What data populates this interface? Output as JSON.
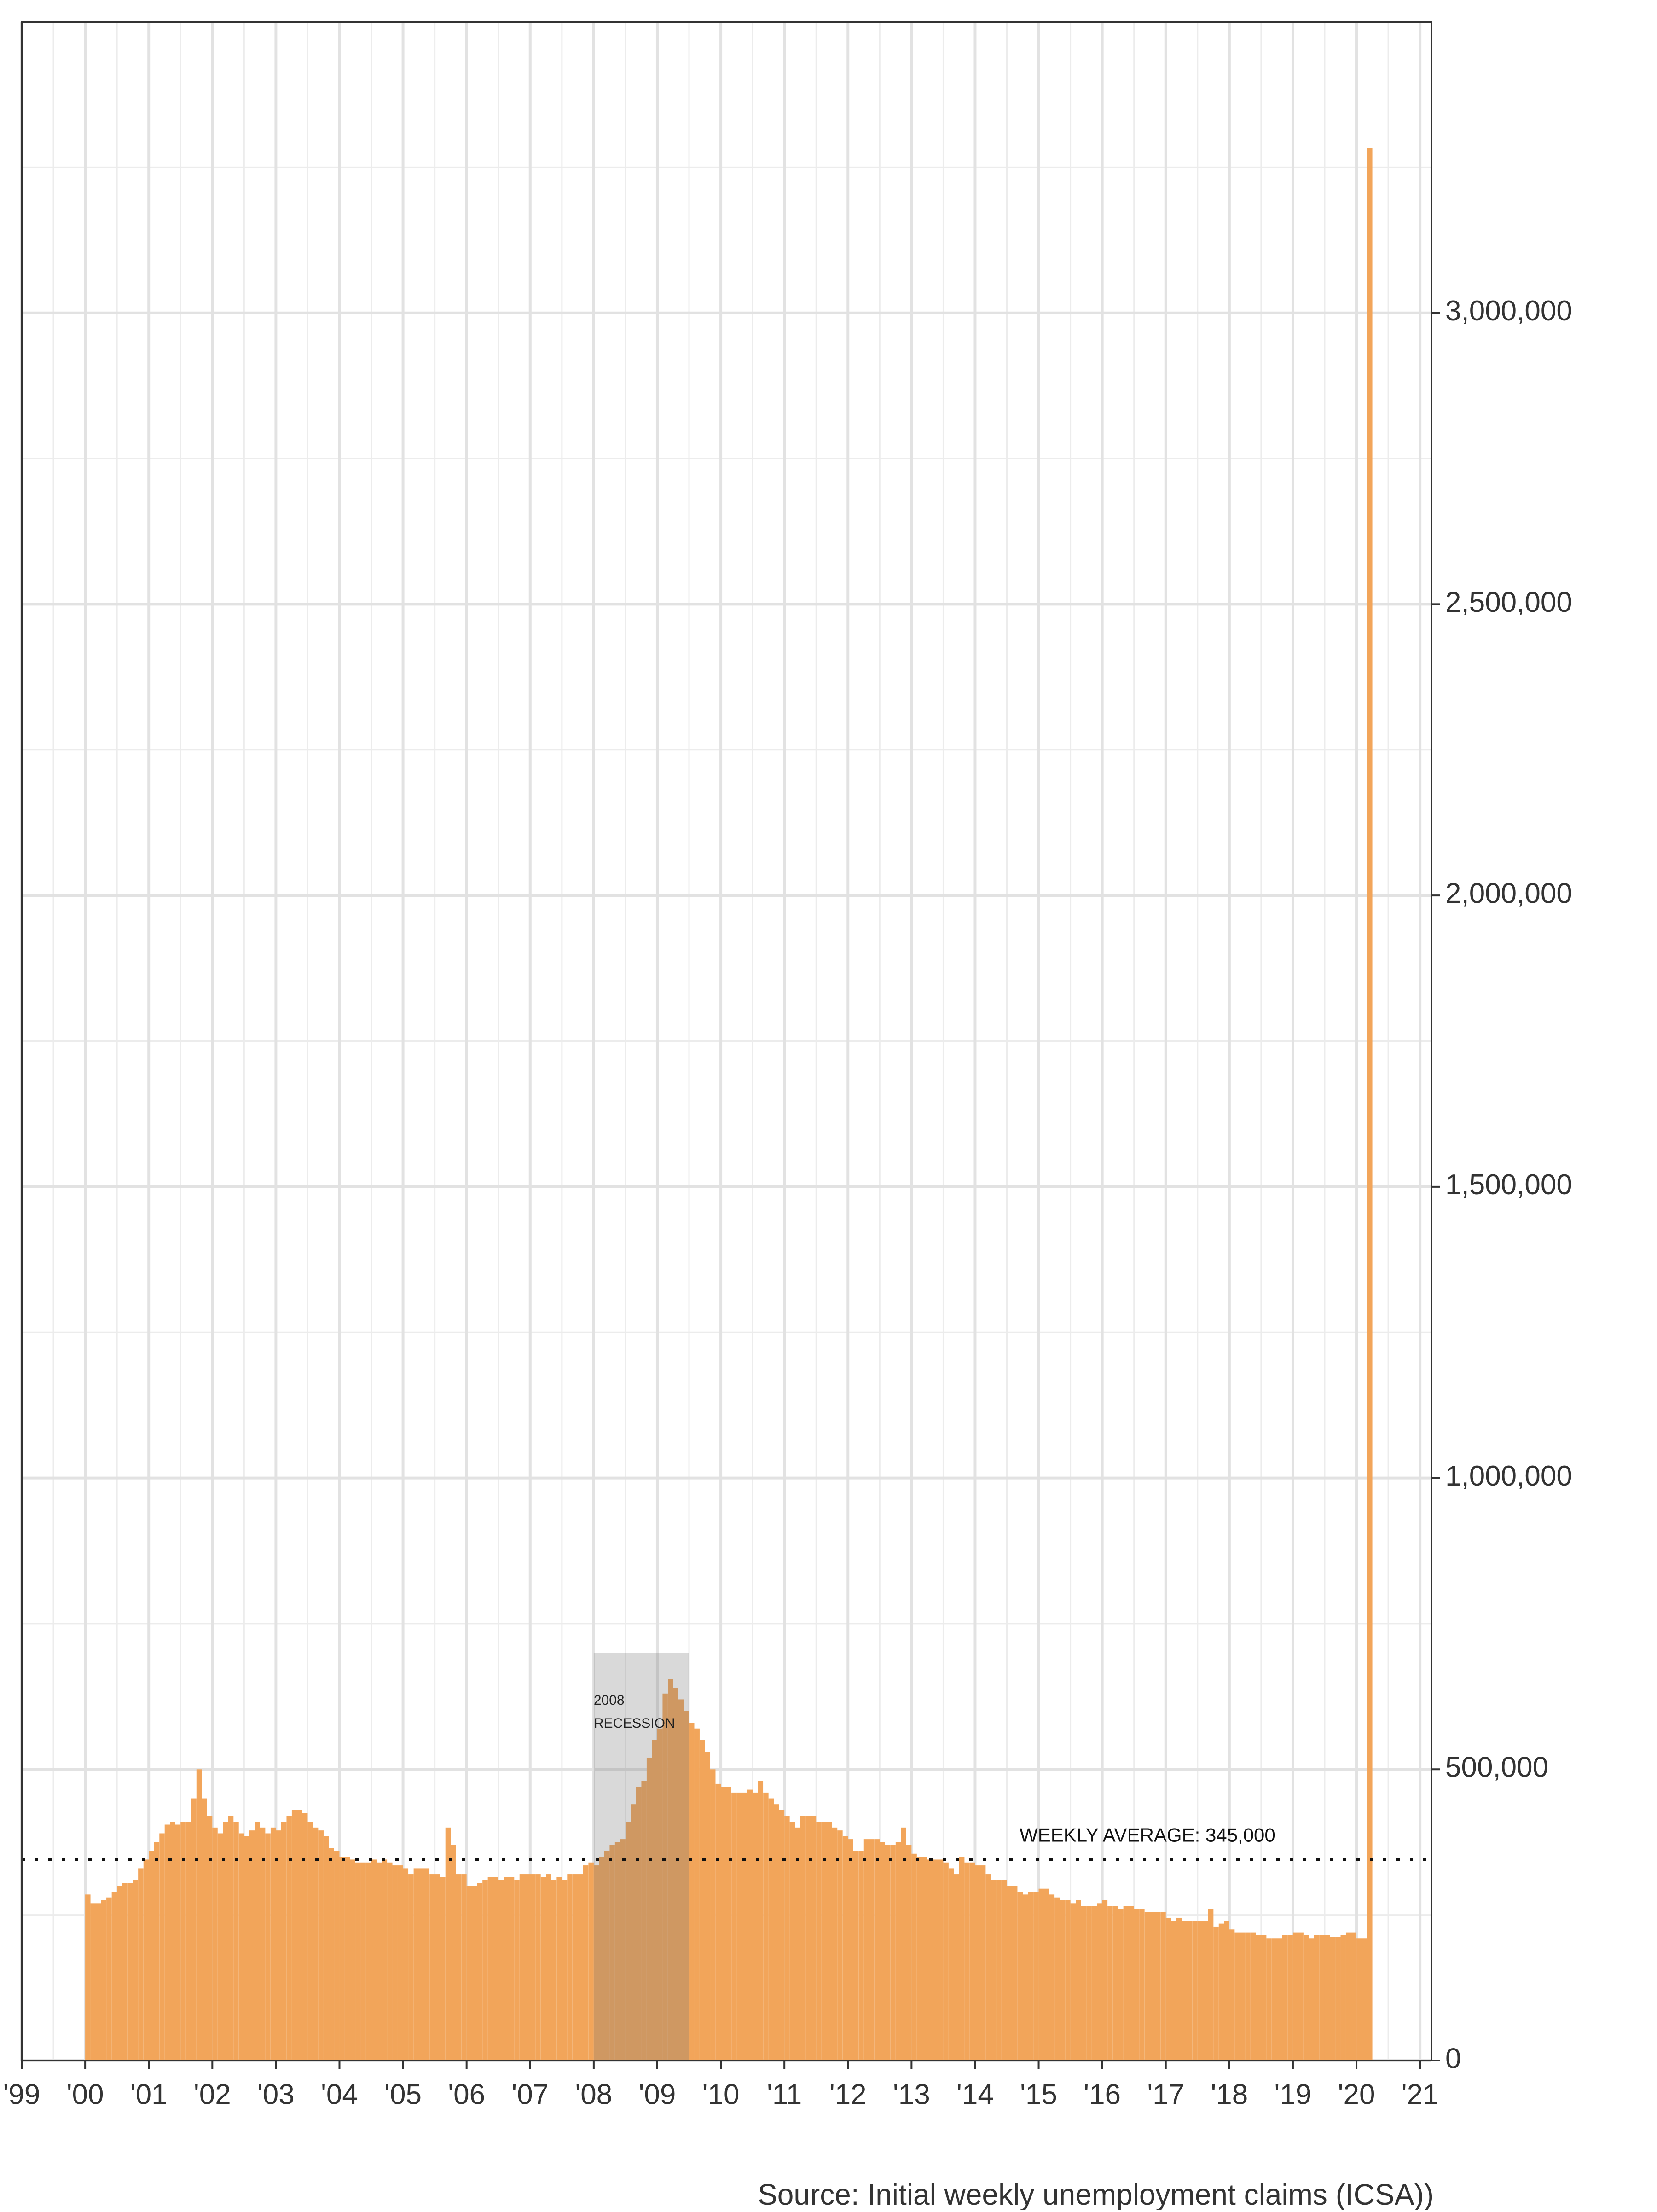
{
  "chart_data": {
    "type": "bar",
    "source": "Source: Initial weekly unemployment claims (ICSA))",
    "color": "#f2a55a",
    "grid": true,
    "xlim": [
      1999,
      2021.18
    ],
    "ylim": [
      0,
      3500000
    ],
    "xticks": [
      {
        "value": 1999,
        "label": "'99"
      },
      {
        "value": 2000,
        "label": "'00"
      },
      {
        "value": 2001,
        "label": "'01"
      },
      {
        "value": 2002,
        "label": "'02"
      },
      {
        "value": 2003,
        "label": "'03"
      },
      {
        "value": 2004,
        "label": "'04"
      },
      {
        "value": 2005,
        "label": "'05"
      },
      {
        "value": 2006,
        "label": "'06"
      },
      {
        "value": 2007,
        "label": "'07"
      },
      {
        "value": 2008,
        "label": "'08"
      },
      {
        "value": 2009,
        "label": "'09"
      },
      {
        "value": 2010,
        "label": "'10"
      },
      {
        "value": 2011,
        "label": "'11"
      },
      {
        "value": 2012,
        "label": "'12"
      },
      {
        "value": 2013,
        "label": "'13"
      },
      {
        "value": 2014,
        "label": "'14"
      },
      {
        "value": 2015,
        "label": "'15"
      },
      {
        "value": 2016,
        "label": "'16"
      },
      {
        "value": 2017,
        "label": "'17"
      },
      {
        "value": 2018,
        "label": "'18"
      },
      {
        "value": 2019,
        "label": "'19"
      },
      {
        "value": 2020,
        "label": "'20"
      },
      {
        "value": 2021,
        "label": "'21"
      }
    ],
    "minor_xticks": [
      1999.5,
      2000.5,
      2001.5,
      2002.5,
      2003.5,
      2004.5,
      2005.5,
      2006.5,
      2007.5,
      2008.5,
      2009.5,
      2010.5,
      2011.5,
      2012.5,
      2013.5,
      2014.5,
      2015.5,
      2016.5,
      2017.5,
      2018.5,
      2019.5,
      2020.5
    ],
    "yticks": [
      0,
      {
        "value": 500000,
        "label": "500,000"
      },
      {
        "value": 1000000,
        "label": "1,000,000"
      },
      {
        "value": 1500000,
        "label": "1,500,000"
      },
      {
        "value": 2000000,
        "label": "2,000,000"
      },
      {
        "value": 2500000,
        "label": "2,500,000"
      },
      {
        "value": 3000000,
        "label": "3,000,000"
      }
    ],
    "minor_yticks": [
      250000,
      750000,
      1250000,
      1750000,
      2250000,
      2750000,
      3250000
    ],
    "recession": {
      "label_lines": [
        "2008",
        "RECESSION"
      ],
      "x": [
        2008,
        2009.5
      ],
      "top": 700000
    },
    "average": {
      "label": "WEEKLY AVERAGE: 345,000",
      "value": 345000
    },
    "x": [
      2000,
      2000.083,
      2000.167,
      2000.25,
      2000.333,
      2000.417,
      2000.5,
      2000.583,
      2000.667,
      2000.75,
      2000.833,
      2000.917,
      2001,
      2001.083,
      2001.167,
      2001.25,
      2001.333,
      2001.417,
      2001.5,
      2001.583,
      2001.667,
      2001.75,
      2001.833,
      2001.917,
      2002,
      2002.083,
      2002.167,
      2002.25,
      2002.333,
      2002.417,
      2002.5,
      2002.583,
      2002.667,
      2002.75,
      2002.833,
      2002.917,
      2003,
      2003.083,
      2003.167,
      2003.25,
      2003.333,
      2003.417,
      2003.5,
      2003.583,
      2003.667,
      2003.75,
      2003.833,
      2003.917,
      2004,
      2004.083,
      2004.167,
      2004.25,
      2004.333,
      2004.417,
      2004.5,
      2004.583,
      2004.667,
      2004.75,
      2004.833,
      2004.917,
      2005,
      2005.083,
      2005.167,
      2005.25,
      2005.333,
      2005.417,
      2005.5,
      2005.583,
      2005.667,
      2005.75,
      2005.833,
      2005.917,
      2006,
      2006.083,
      2006.167,
      2006.25,
      2006.333,
      2006.417,
      2006.5,
      2006.583,
      2006.667,
      2006.75,
      2006.833,
      2006.917,
      2007,
      2007.083,
      2007.167,
      2007.25,
      2007.333,
      2007.417,
      2007.5,
      2007.583,
      2007.667,
      2007.75,
      2007.833,
      2007.917,
      2008,
      2008.083,
      2008.167,
      2008.25,
      2008.333,
      2008.417,
      2008.5,
      2008.583,
      2008.667,
      2008.75,
      2008.833,
      2008.917,
      2009,
      2009.083,
      2009.167,
      2009.25,
      2009.333,
      2009.417,
      2009.5,
      2009.583,
      2009.667,
      2009.75,
      2009.833,
      2009.917,
      2010,
      2010.083,
      2010.167,
      2010.25,
      2010.333,
      2010.417,
      2010.5,
      2010.583,
      2010.667,
      2010.75,
      2010.833,
      2010.917,
      2011,
      2011.083,
      2011.167,
      2011.25,
      2011.333,
      2011.417,
      2011.5,
      2011.583,
      2011.667,
      2011.75,
      2011.833,
      2011.917,
      2012,
      2012.083,
      2012.167,
      2012.25,
      2012.333,
      2012.417,
      2012.5,
      2012.583,
      2012.667,
      2012.75,
      2012.833,
      2012.917,
      2013,
      2013.083,
      2013.167,
      2013.25,
      2013.333,
      2013.417,
      2013.5,
      2013.583,
      2013.667,
      2013.75,
      2013.833,
      2013.917,
      2014,
      2014.083,
      2014.167,
      2014.25,
      2014.333,
      2014.417,
      2014.5,
      2014.583,
      2014.667,
      2014.75,
      2014.833,
      2014.917,
      2015,
      2015.083,
      2015.167,
      2015.25,
      2015.333,
      2015.417,
      2015.5,
      2015.583,
      2015.667,
      2015.75,
      2015.833,
      2015.917,
      2016,
      2016.083,
      2016.167,
      2016.25,
      2016.333,
      2016.417,
      2016.5,
      2016.583,
      2016.667,
      2016.75,
      2016.833,
      2016.917,
      2017,
      2017.083,
      2017.167,
      2017.25,
      2017.333,
      2017.417,
      2017.5,
      2017.583,
      2017.667,
      2017.75,
      2017.833,
      2017.917,
      2018,
      2018.083,
      2018.167,
      2018.25,
      2018.333,
      2018.417,
      2018.5,
      2018.583,
      2018.667,
      2018.75,
      2018.833,
      2018.917,
      2019,
      2019.083,
      2019.167,
      2019.25,
      2019.333,
      2019.417,
      2019.5,
      2019.583,
      2019.667,
      2019.75,
      2019.833,
      2019.917,
      2020,
      2020.083,
      2020.167
    ],
    "values": [
      285000,
      270000,
      270000,
      275000,
      280000,
      290000,
      300000,
      305000,
      305000,
      310000,
      330000,
      345000,
      360000,
      375000,
      390000,
      405000,
      410000,
      405000,
      410000,
      410000,
      450000,
      500000,
      450000,
      420000,
      400000,
      390000,
      410000,
      420000,
      410000,
      390000,
      385000,
      395000,
      410000,
      400000,
      390000,
      400000,
      395000,
      410000,
      420000,
      430000,
      430000,
      425000,
      410000,
      400000,
      395000,
      385000,
      365000,
      360000,
      350000,
      350000,
      345000,
      340000,
      340000,
      340000,
      345000,
      340000,
      345000,
      340000,
      335000,
      335000,
      330000,
      320000,
      330000,
      330000,
      330000,
      320000,
      320000,
      315000,
      400000,
      370000,
      320000,
      320000,
      300000,
      300000,
      305000,
      310000,
      315000,
      315000,
      310000,
      315000,
      315000,
      310000,
      320000,
      320000,
      320000,
      320000,
      315000,
      320000,
      310000,
      315000,
      310000,
      320000,
      320000,
      320000,
      335000,
      340000,
      335000,
      350000,
      360000,
      370000,
      375000,
      380000,
      410000,
      440000,
      470000,
      480000,
      520000,
      550000,
      570000,
      630000,
      655000,
      640000,
      620000,
      600000,
      580000,
      570000,
      550000,
      530000,
      500000,
      475000,
      470000,
      470000,
      460000,
      460000,
      460000,
      465000,
      460000,
      480000,
      460000,
      450000,
      440000,
      430000,
      420000,
      410000,
      400000,
      420000,
      420000,
      420000,
      410000,
      410000,
      410000,
      400000,
      395000,
      385000,
      380000,
      360000,
      360000,
      380000,
      380000,
      380000,
      375000,
      370000,
      370000,
      375000,
      400000,
      370000,
      355000,
      350000,
      350000,
      345000,
      345000,
      345000,
      340000,
      330000,
      320000,
      350000,
      340000,
      340000,
      335000,
      335000,
      320000,
      310000,
      310000,
      310000,
      300000,
      300000,
      290000,
      285000,
      290000,
      290000,
      295000,
      295000,
      285000,
      280000,
      275000,
      275000,
      270000,
      275000,
      265000,
      265000,
      265000,
      270000,
      275000,
      265000,
      265000,
      260000,
      265000,
      265000,
      260000,
      260000,
      255000,
      255000,
      255000,
      255000,
      245000,
      240000,
      245000,
      240000,
      240000,
      240000,
      240000,
      240000,
      260000,
      230000,
      235000,
      240000,
      225000,
      220000,
      220000,
      220000,
      220000,
      215000,
      215000,
      210000,
      210000,
      210000,
      215000,
      215000,
      220000,
      220000,
      215000,
      210000,
      215000,
      215000,
      215000,
      212000,
      212000,
      215000,
      220000,
      220000,
      210000,
      210000,
      3283000
    ]
  }
}
